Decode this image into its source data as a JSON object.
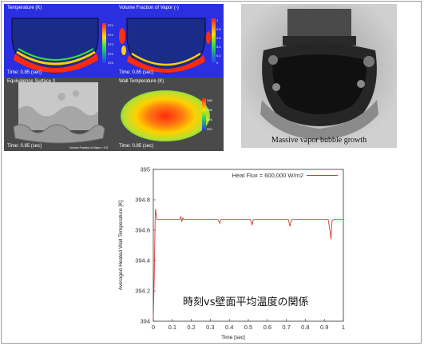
{
  "sim_panels": [
    {
      "label": "Temperature (K)",
      "time": "Time: 0.85 (sec)"
    },
    {
      "label": "Volume Fraction of Vapor (-)",
      "time": "Time: 0.85 (sec)"
    },
    {
      "label": "Equivalence Surface 0",
      "time": "Time: 0.85 (sec)",
      "caption": "Volume Fraction of Vapor = 0.5"
    },
    {
      "label": "Wall Temperature (K)",
      "time": "Time: 0.85 (sec)"
    }
  ],
  "colorbar_ticks": {
    "temperature": [
      "374",
      "374",
      "373",
      "373",
      "373"
    ],
    "vapor": [
      "1",
      "0.8",
      "0.6",
      "0.4",
      "0.2",
      "0"
    ],
    "wall": [
      "398",
      "396",
      "394",
      "392"
    ]
  },
  "photo": {
    "caption": "Massive vapor bubble growth"
  },
  "annotation": "時刻vs壁面平均温度の関係",
  "colors": {
    "series": "#e03030",
    "sim_bg": "#2a2fe0",
    "photo_bg": "#bdbdbd"
  },
  "chart_data": {
    "type": "line",
    "xlabel": "Time [sec]",
    "ylabel": "Averaged Heated Wall Temperature [K]",
    "xlim": [
      0,
      1
    ],
    "ylim": [
      394,
      395
    ],
    "xticks": [
      "0",
      "0.1",
      "0.2",
      "0.3",
      "0.4",
      "0.5",
      "0.6",
      "0.7",
      "0.8",
      "0.9",
      "1"
    ],
    "yticks": [
      "394",
      "394.2",
      "394.4",
      "394.6",
      "394.8",
      "395"
    ],
    "legend_position": "top-right",
    "series": [
      {
        "name": "Heat Flux = 600,000 W/m2",
        "x": [
          0.0,
          0.005,
          0.01,
          0.012,
          0.015,
          0.02,
          0.03,
          0.05,
          0.1,
          0.14,
          0.145,
          0.15,
          0.155,
          0.16,
          0.2,
          0.25,
          0.3,
          0.34,
          0.35,
          0.355,
          0.36,
          0.4,
          0.45,
          0.5,
          0.51,
          0.52,
          0.525,
          0.53,
          0.6,
          0.65,
          0.7,
          0.71,
          0.72,
          0.725,
          0.73,
          0.8,
          0.85,
          0.9,
          0.92,
          0.93,
          0.935,
          0.94,
          0.95,
          1.0
        ],
        "y": [
          394.02,
          394.3,
          394.7,
          394.74,
          394.7,
          394.67,
          394.67,
          394.67,
          394.67,
          394.67,
          394.69,
          394.655,
          394.68,
          394.67,
          394.67,
          394.67,
          394.67,
          394.67,
          394.645,
          394.67,
          394.67,
          394.67,
          394.67,
          394.67,
          394.67,
          394.635,
          394.665,
          394.67,
          394.67,
          394.67,
          394.67,
          394.67,
          394.625,
          394.66,
          394.67,
          394.67,
          394.67,
          394.67,
          394.67,
          394.595,
          394.54,
          394.66,
          394.67,
          394.67
        ]
      }
    ]
  }
}
